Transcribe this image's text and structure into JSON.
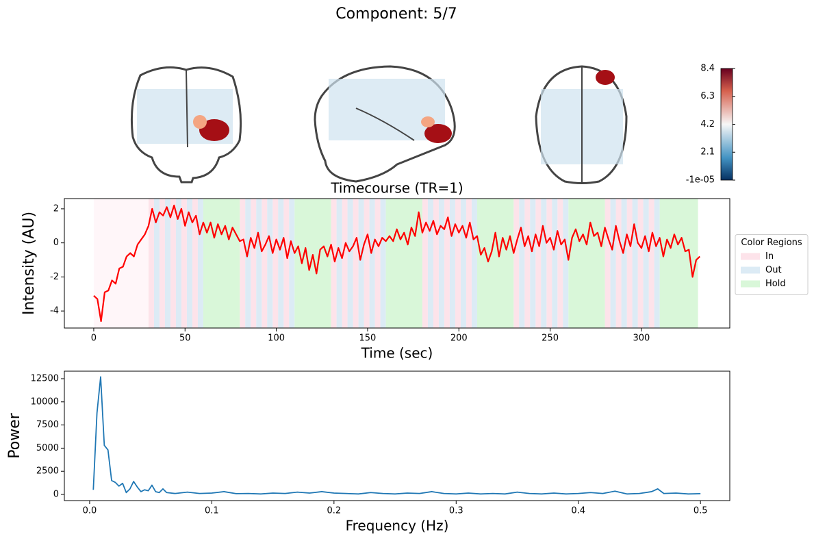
{
  "title": "Component: 5/7",
  "colorbar": {
    "range": [
      -1e-05,
      8.4
    ],
    "ticks": [
      {
        "value": -1e-05,
        "label": "-1e-05"
      },
      2.1,
      4.2,
      6.3,
      8.4
    ]
  },
  "chart_data": [
    {
      "type": "line",
      "title": "Timecourse (TR=1)",
      "x_label": "Time (sec)",
      "y_label": "Intensity (AU)",
      "color": "#ff0000",
      "x": [
        0,
        2,
        4,
        6,
        8,
        10,
        12,
        14,
        16,
        18,
        20,
        22,
        24,
        26,
        28,
        30,
        32,
        34,
        36,
        38,
        40,
        42,
        44,
        46,
        48,
        50,
        52,
        54,
        56,
        58,
        60,
        62,
        64,
        66,
        68,
        70,
        72,
        74,
        76,
        78,
        80,
        82,
        84,
        86,
        88,
        90,
        92,
        94,
        96,
        98,
        100,
        102,
        104,
        106,
        108,
        110,
        112,
        114,
        116,
        118,
        120,
        122,
        124,
        126,
        128,
        130,
        132,
        134,
        136,
        138,
        140,
        142,
        144,
        146,
        148,
        150,
        152,
        154,
        156,
        158,
        160,
        162,
        164,
        166,
        168,
        170,
        172,
        174,
        176,
        178,
        180,
        182,
        184,
        186,
        188,
        190,
        192,
        194,
        196,
        198,
        200,
        202,
        204,
        206,
        208,
        210,
        212,
        214,
        216,
        218,
        220,
        222,
        224,
        226,
        228,
        230,
        232,
        234,
        236,
        238,
        240,
        242,
        244,
        246,
        248,
        250,
        252,
        254,
        256,
        258,
        260,
        262,
        264,
        266,
        268,
        270,
        272,
        274,
        276,
        278,
        280,
        282,
        284,
        286,
        288,
        290,
        292,
        294,
        296,
        298,
        300,
        302,
        304,
        306,
        308,
        310,
        312,
        314,
        316,
        318,
        320,
        322,
        324,
        326,
        328,
        330,
        332
      ],
      "values": [
        -3.1,
        -3.3,
        -4.6,
        -2.9,
        -2.8,
        -2.2,
        -2.4,
        -1.5,
        -1.4,
        -0.8,
        -0.6,
        -0.8,
        -0.1,
        0.2,
        0.5,
        1.0,
        2.0,
        1.2,
        1.8,
        1.6,
        2.1,
        1.5,
        2.2,
        1.4,
        2.0,
        1.0,
        1.8,
        1.2,
        1.6,
        0.5,
        1.2,
        0.6,
        1.2,
        0.3,
        1.1,
        0.5,
        1.0,
        0.2,
        0.9,
        0.5,
        0.1,
        0.2,
        -0.8,
        0.3,
        -0.3,
        0.6,
        -0.5,
        -0.1,
        0.4,
        -0.6,
        0.2,
        -0.4,
        0.3,
        -0.9,
        0.1,
        -0.6,
        -0.2,
        -1.2,
        -0.3,
        -1.6,
        -0.7,
        -1.8,
        -0.4,
        -0.2,
        -0.8,
        -0.1,
        -1.1,
        -0.3,
        -0.9,
        0.0,
        -0.5,
        -0.2,
        0.3,
        -1.0,
        -0.1,
        0.5,
        -0.6,
        0.2,
        -0.2,
        0.3,
        0.1,
        0.4,
        0.1,
        0.8,
        0.2,
        0.6,
        -0.1,
        0.9,
        0.4,
        1.8,
        0.6,
        1.2,
        0.7,
        1.3,
        0.5,
        1.0,
        0.8,
        1.5,
        0.4,
        1.1,
        0.6,
        1.0,
        0.3,
        1.2,
        0.2,
        0.4,
        -0.7,
        -0.3,
        -1.1,
        -0.5,
        0.6,
        -0.8,
        0.3,
        -0.4,
        0.4,
        -0.6,
        0.2,
        0.9,
        -0.2,
        0.4,
        -0.5,
        0.5,
        -0.2,
        1.0,
        0.0,
        0.3,
        -0.4,
        0.7,
        -0.1,
        0.2,
        -1.0,
        0.3,
        0.8,
        0.1,
        0.5,
        -0.1,
        1.2,
        0.4,
        0.6,
        -0.2,
        0.9,
        0.2,
        -0.4,
        1.0,
        0.1,
        -0.6,
        0.5,
        -0.2,
        1.1,
        0.0,
        -0.3,
        0.4,
        -0.5,
        0.6,
        -0.2,
        0.3,
        -0.8,
        0.2,
        -0.3,
        0.5,
        -0.1,
        0.3,
        -0.5,
        -0.4,
        -2.0,
        -1.0,
        -0.8
      ],
      "xlim": [
        -16.1,
        348.4
      ],
      "xticks": [
        0,
        50,
        100,
        150,
        200,
        250,
        300
      ],
      "ylim": [
        -5.0,
        2.6
      ],
      "yticks": [
        -4,
        -2,
        0,
        2
      ],
      "legend": {
        "title": "Color Regions",
        "loc": "center right outside"
      },
      "regions": [
        {
          "color": "#fff6f9",
          "spans": [
            [
              0,
              30
            ]
          ]
        },
        {
          "name": "In",
          "color": "#fde3ea",
          "spans": [
            [
              30,
              33
            ],
            [
              36,
              39
            ],
            [
              42,
              45
            ],
            [
              48,
              51
            ],
            [
              54,
              57
            ],
            [
              80,
              83
            ],
            [
              86,
              89
            ],
            [
              92,
              95
            ],
            [
              98,
              101
            ],
            [
              104,
              107
            ],
            [
              130,
              133
            ],
            [
              136,
              139
            ],
            [
              142,
              145
            ],
            [
              148,
              151
            ],
            [
              154,
              157
            ],
            [
              180,
              183
            ],
            [
              186,
              189
            ],
            [
              192,
              195
            ],
            [
              198,
              201
            ],
            [
              204,
              207
            ],
            [
              230,
              233
            ],
            [
              236,
              239
            ],
            [
              242,
              245
            ],
            [
              248,
              251
            ],
            [
              254,
              257
            ],
            [
              280,
              283
            ],
            [
              286,
              289
            ],
            [
              292,
              295
            ],
            [
              298,
              301
            ],
            [
              304,
              307
            ]
          ]
        },
        {
          "name": "Out",
          "color": "#dcebf5",
          "spans": [
            [
              33,
              36
            ],
            [
              39,
              42
            ],
            [
              45,
              48
            ],
            [
              51,
              54
            ],
            [
              57,
              60
            ],
            [
              83,
              86
            ],
            [
              89,
              92
            ],
            [
              95,
              98
            ],
            [
              101,
              104
            ],
            [
              107,
              110
            ],
            [
              133,
              136
            ],
            [
              139,
              142
            ],
            [
              145,
              148
            ],
            [
              151,
              154
            ],
            [
              157,
              160
            ],
            [
              183,
              186
            ],
            [
              189,
              192
            ],
            [
              195,
              198
            ],
            [
              201,
              204
            ],
            [
              207,
              210
            ],
            [
              233,
              236
            ],
            [
              239,
              242
            ],
            [
              245,
              248
            ],
            [
              251,
              254
            ],
            [
              257,
              260
            ],
            [
              283,
              286
            ],
            [
              289,
              292
            ],
            [
              295,
              298
            ],
            [
              301,
              304
            ],
            [
              307,
              310
            ]
          ]
        },
        {
          "name": "Hold",
          "color": "#d9f7d9",
          "spans": [
            [
              60,
              80
            ],
            [
              110,
              130
            ],
            [
              160,
              180
            ],
            [
              210,
              230
            ],
            [
              260,
              280
            ],
            [
              310,
              331
            ]
          ]
        }
      ]
    },
    {
      "type": "line",
      "x_label": "Frequency (Hz)",
      "y_label": "Power",
      "color": "#1f77b4",
      "x": [
        0.003,
        0.006,
        0.009,
        0.012,
        0.015,
        0.018,
        0.021,
        0.024,
        0.027,
        0.03,
        0.033,
        0.036,
        0.039,
        0.042,
        0.045,
        0.048,
        0.051,
        0.054,
        0.057,
        0.06,
        0.063,
        0.07,
        0.08,
        0.09,
        0.1,
        0.11,
        0.12,
        0.13,
        0.14,
        0.15,
        0.16,
        0.17,
        0.18,
        0.19,
        0.2,
        0.21,
        0.22,
        0.23,
        0.24,
        0.25,
        0.26,
        0.27,
        0.28,
        0.29,
        0.3,
        0.31,
        0.32,
        0.33,
        0.34,
        0.35,
        0.36,
        0.37,
        0.38,
        0.39,
        0.4,
        0.41,
        0.42,
        0.43,
        0.44,
        0.45,
        0.46,
        0.465,
        0.47,
        0.48,
        0.49,
        0.5
      ],
      "values": [
        500,
        8800,
        12700,
        5300,
        4800,
        1500,
        1300,
        900,
        1200,
        200,
        600,
        1400,
        800,
        300,
        500,
        400,
        1000,
        300,
        200,
        600,
        200,
        100,
        250,
        100,
        150,
        300,
        80,
        100,
        50,
        150,
        100,
        250,
        150,
        300,
        150,
        100,
        50,
        200,
        100,
        50,
        150,
        100,
        300,
        100,
        50,
        150,
        50,
        100,
        50,
        250,
        100,
        50,
        150,
        50,
        100,
        200,
        100,
        350,
        50,
        100,
        300,
        600,
        100,
        150,
        50,
        80
      ],
      "xlim": [
        -0.0207,
        0.524
      ],
      "xticks": [
        {
          "value": 0,
          "label": "0.0"
        },
        0.1,
        0.2,
        0.3,
        0.4,
        0.5
      ],
      "ylim": [
        -666,
        13314
      ],
      "yticks": [
        0,
        2500,
        5000,
        7500,
        10000,
        12500
      ]
    }
  ]
}
